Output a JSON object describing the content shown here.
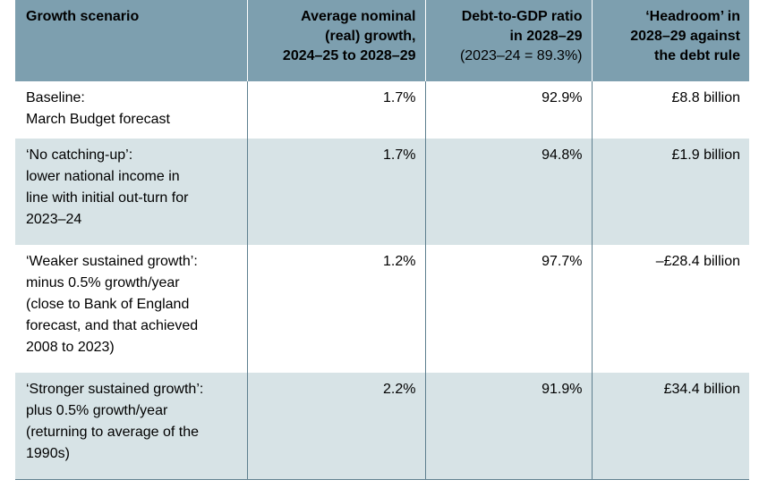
{
  "headers": {
    "col1": "Growth scenario",
    "col2_lines": [
      "Average nominal",
      "(real) growth,",
      "2024–25 to 2028–29"
    ],
    "col3_lines": [
      "Debt-to-GDP ratio",
      "in 2028–29"
    ],
    "col3_sub": "(2023–24 = 89.3%)",
    "col4_lines": [
      "‘Headroom’ in",
      "2028–29 against",
      "the debt rule"
    ]
  },
  "rows": [
    {
      "scenario_lines": [
        "Baseline:",
        "March Budget forecast"
      ],
      "growth": "1.7%",
      "debt_ratio": "92.9%",
      "headroom": "£8.8 billion"
    },
    {
      "scenario_lines": [
        "‘No catching-up’:",
        "lower national income in",
        "line with initial out-turn for",
        "2023–24"
      ],
      "growth": "1.7%",
      "debt_ratio": "94.8%",
      "headroom": "£1.9 billion"
    },
    {
      "scenario_lines": [
        "‘Weaker sustained growth’:",
        "minus 0.5% growth/year",
        "(close to Bank of England",
        "forecast, and that achieved",
        "2008 to 2023)"
      ],
      "growth": "1.2%",
      "debt_ratio": "97.7%",
      "headroom": "–£28.4 billion"
    },
    {
      "scenario_lines": [
        "‘Stronger sustained growth’:",
        "plus 0.5% growth/year",
        "(returning to average of the",
        "1990s)"
      ],
      "growth": "2.2%",
      "debt_ratio": "91.9%",
      "headroom": "£34.4 billion"
    }
  ]
}
